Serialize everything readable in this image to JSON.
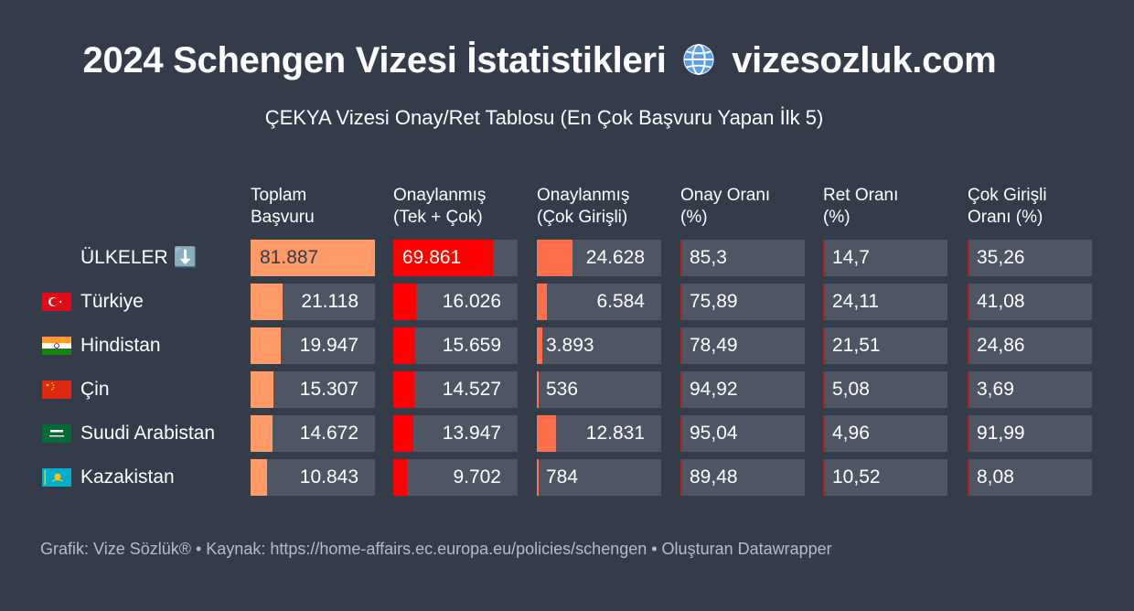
{
  "header": {
    "title_main": "2024 Schengen Vizesi İstatistikleri",
    "title_site": "vizesozluk.com",
    "subtitle": "ÇEKYA Vizesi Onay/Ret Tablosu (En Çok Başvuru Yapan İlk 5)"
  },
  "icons": {
    "title_icon": "globe-icon",
    "header_row_icon": "down-arrow-icon"
  },
  "chart_data": {
    "type": "table",
    "columns": [
      {
        "label_line1": "Toplam",
        "label_line2": "Başvuru",
        "color": "#ff9966"
      },
      {
        "label_line1": "Onaylanmış",
        "label_line2": "(Tek + Çok)",
        "color": "#ff0000"
      },
      {
        "label_line1": "Onaylanmış",
        "label_line2": "(Çok Girişli)",
        "color": "#ff6f4a"
      },
      {
        "label_line1": "Onay Oranı",
        "label_line2": "(%)",
        "color": "#b32020"
      },
      {
        "label_line1": "Ret Oranı",
        "label_line2": "(%)",
        "color": "#b32020"
      },
      {
        "label_line1": "Çok Girişli",
        "label_line2": "Oranı (%)",
        "color": "#b32020"
      }
    ],
    "rows": [
      {
        "label": "ÜLKELER ⬇️",
        "flag": "",
        "values": [
          "81.887",
          "69.861",
          "24.628",
          "85,3",
          "14,7",
          "35,26"
        ],
        "numbers": [
          81887,
          69861,
          24628,
          85.3,
          14.7,
          35.26
        ]
      },
      {
        "label": "Türkiye",
        "flag": "flag-turkey",
        "values": [
          "21.118",
          "16.026",
          "6.584",
          "75,89",
          "24,11",
          "41,08"
        ],
        "numbers": [
          21118,
          16026,
          6584,
          75.89,
          24.11,
          41.08
        ]
      },
      {
        "label": "Hindistan",
        "flag": "flag-india",
        "values": [
          "19.947",
          "15.659",
          "3.893",
          "78,49",
          "21,51",
          "24,86"
        ],
        "numbers": [
          19947,
          15659,
          3893,
          78.49,
          21.51,
          24.86
        ]
      },
      {
        "label": "Çin",
        "flag": "flag-china",
        "values": [
          "15.307",
          "14.527",
          "536",
          "94,92",
          "5,08",
          "3,69"
        ],
        "numbers": [
          15307,
          14527,
          536,
          94.92,
          5.08,
          3.69
        ]
      },
      {
        "label": "Suudi Arabistan",
        "flag": "flag-saudi-arabia",
        "values": [
          "14.672",
          "13.947",
          "12.831",
          "95,04",
          "4,96",
          "91,99"
        ],
        "numbers": [
          14672,
          13947,
          12831,
          95.04,
          4.96,
          91.99
        ]
      },
      {
        "label": "Kazakistan",
        "flag": "flag-kazakhstan",
        "values": [
          "10.843",
          "9.702",
          "784",
          "89,48",
          "10,52",
          "8,08"
        ],
        "numbers": [
          10843,
          9702,
          784,
          89.48,
          10.52,
          8.08
        ]
      }
    ]
  },
  "footer": {
    "text": "Grafik: Vize Sözlük® • Kaynak: https://home-affairs.ec.europa.eu/policies/schengen • Oluşturan Datawrapper"
  }
}
